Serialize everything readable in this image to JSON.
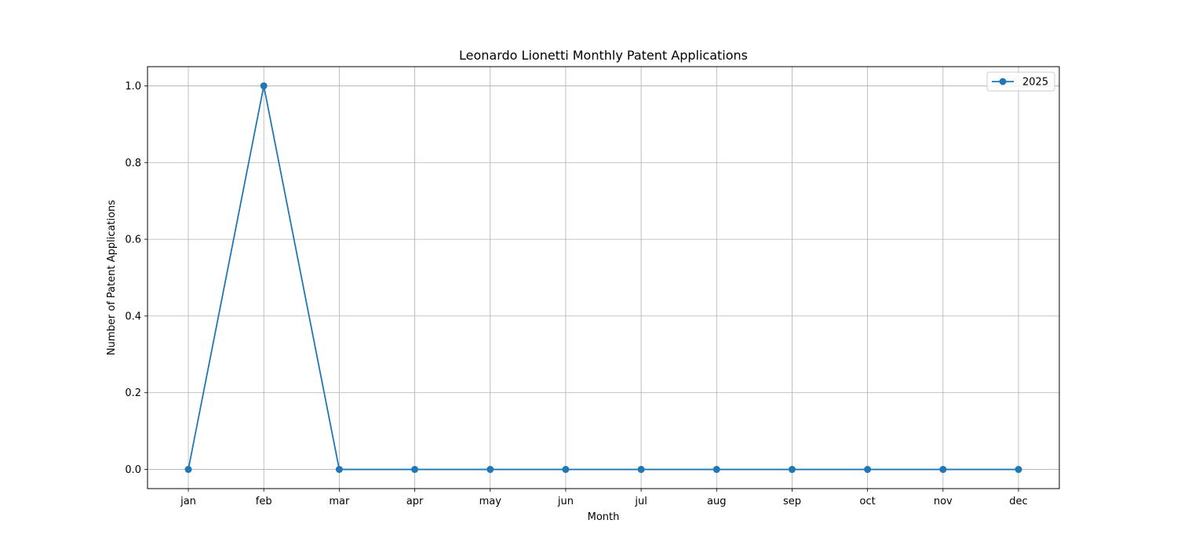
{
  "chart_data": {
    "type": "line",
    "title": "Leonardo Lionetti Monthly Patent Applications",
    "xlabel": "Month",
    "ylabel": "Number of Patent Applications",
    "categories": [
      "jan",
      "feb",
      "mar",
      "apr",
      "may",
      "jun",
      "jul",
      "aug",
      "sep",
      "oct",
      "nov",
      "dec"
    ],
    "series": [
      {
        "name": "2025",
        "values": [
          0,
          1,
          0,
          0,
          0,
          0,
          0,
          0,
          0,
          0,
          0,
          0
        ],
        "color": "#1f77b4",
        "marker": "circle"
      }
    ],
    "ylim": [
      -0.05,
      1.05
    ],
    "yticks": [
      0.0,
      0.2,
      0.4,
      0.6,
      0.8,
      1.0
    ],
    "ytick_labels": [
      "0.0",
      "0.2",
      "0.4",
      "0.6",
      "0.8",
      "1.0"
    ],
    "grid": true,
    "legend_position": "top-right"
  }
}
